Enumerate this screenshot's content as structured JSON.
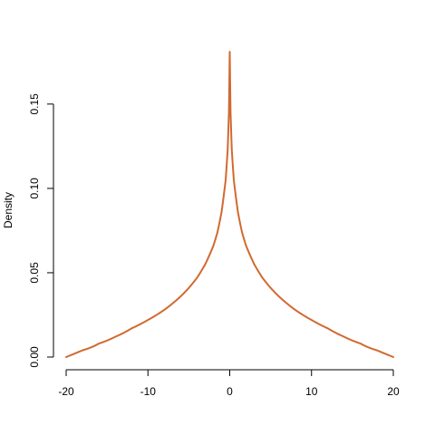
{
  "chart_data": {
    "type": "line",
    "title": "",
    "xlabel": "",
    "ylabel": "Density",
    "xlim": [
      -20,
      20
    ],
    "ylim": [
      0,
      0.18
    ],
    "x_ticks": [
      -20,
      -10,
      0,
      10,
      20
    ],
    "x_tick_labels": [
      "-20",
      "-10",
      "0",
      "10",
      "20"
    ],
    "y_ticks": [
      0.0,
      0.05,
      0.1,
      0.15
    ],
    "y_tick_labels": [
      "0.00",
      "0.05",
      "0.10",
      "0.15"
    ],
    "grid": false,
    "legend": "none",
    "series": [
      {
        "color": "#d2692f",
        "x": [
          -20,
          -18,
          -16,
          -14,
          -12,
          -10,
          -8,
          -6,
          -5,
          -4,
          -3,
          -2,
          -1.5,
          -1,
          -0.5,
          -0.25,
          -0.1,
          0,
          0.1,
          0.25,
          0.5,
          1,
          1.5,
          2,
          3,
          4,
          5,
          6,
          8,
          10,
          12,
          14,
          16,
          18,
          20
        ],
        "y": [
          0.0,
          0.004,
          0.008,
          0.012,
          0.017,
          0.022,
          0.028,
          0.036,
          0.041,
          0.047,
          0.055,
          0.066,
          0.074,
          0.086,
          0.105,
          0.123,
          0.145,
          0.181,
          0.145,
          0.123,
          0.105,
          0.086,
          0.074,
          0.066,
          0.055,
          0.047,
          0.041,
          0.036,
          0.028,
          0.022,
          0.017,
          0.012,
          0.008,
          0.004,
          0.0
        ]
      }
    ]
  }
}
